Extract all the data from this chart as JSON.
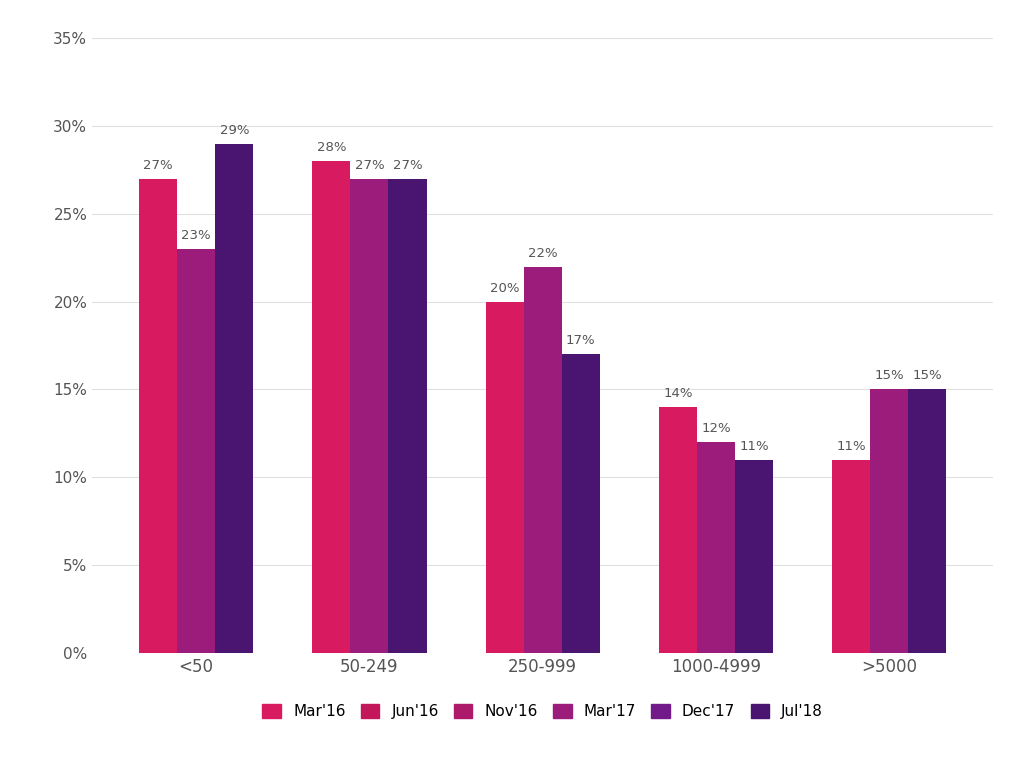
{
  "categories": [
    "<50",
    "50-249",
    "250-999",
    "1000-4999",
    ">5000"
  ],
  "active_series": [
    {
      "label": "Mar'16",
      "color": "#D81B60",
      "values": [
        27,
        28,
        20,
        14,
        11
      ]
    },
    {
      "label": "Mar'17",
      "color": "#9B1C7A",
      "values": [
        23,
        27,
        22,
        12,
        15
      ]
    },
    {
      "label": "Jul'18",
      "color": "#4A1570",
      "values": [
        29,
        27,
        17,
        11,
        15
      ]
    }
  ],
  "all_legend": [
    {
      "label": "Mar'16",
      "color": "#D81B60"
    },
    {
      "label": "Jun'16",
      "color": "#C2185B"
    },
    {
      "label": "Nov'16",
      "color": "#AD1A6A"
    },
    {
      "label": "Mar'17",
      "color": "#9B1C7A"
    },
    {
      "label": "Dec'17",
      "color": "#721A8A"
    },
    {
      "label": "Jul'18",
      "color": "#4A1570"
    }
  ],
  "ylim": [
    0,
    35
  ],
  "yticks": [
    0,
    5,
    10,
    15,
    20,
    25,
    30,
    35
  ],
  "background_color": "#ffffff",
  "grid_color": "#e0e0e0",
  "text_color": "#555555",
  "bar_width": 0.22,
  "label_fontsize": 9.5,
  "tick_fontsize": 11,
  "legend_fontsize": 11,
  "cat_fontsize": 12
}
